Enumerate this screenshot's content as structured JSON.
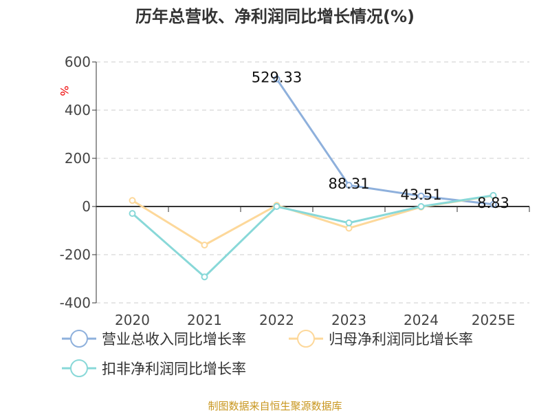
{
  "chart_data": {
    "type": "line",
    "title": "历年总营收、净利润同比增长情况(%)",
    "ylabel": "%",
    "ylim": [
      -400,
      600
    ],
    "yticks": [
      600,
      400,
      200,
      0,
      -200,
      -400
    ],
    "grid": true,
    "legend_position": "bottom",
    "categories": [
      "2020",
      "2021",
      "2022",
      "2023",
      "2024",
      "2025E"
    ],
    "series": [
      {
        "name": "营业总收入同比增长率",
        "color": "#8eb0dc",
        "values": [
          null,
          null,
          529.33,
          88.31,
          43.51,
          8.83
        ],
        "labels": [
          null,
          null,
          "529.33",
          "88.31",
          "43.51",
          "8.83"
        ]
      },
      {
        "name": "归母净利润同比增长率",
        "color": "#fdd89a",
        "values": [
          25,
          -160,
          5,
          -90,
          -2,
          45
        ]
      },
      {
        "name": "扣非净利润同比增长率",
        "color": "#88d8d8",
        "values": [
          -29,
          -292,
          0,
          -68,
          0,
          46
        ]
      }
    ]
  },
  "source": "制图数据来自恒生聚源数据库"
}
